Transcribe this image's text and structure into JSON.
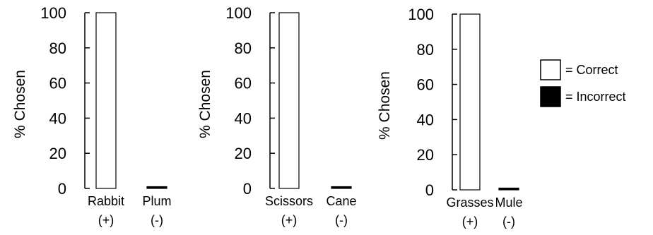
{
  "chart_data": [
    {
      "type": "bar",
      "categories": [
        "Rabbit",
        "Plum"
      ],
      "category_signs": [
        "(+)",
        "(-)"
      ],
      "values": [
        100,
        1
      ],
      "bar_fill": [
        "#ffffff",
        "#000000"
      ],
      "ylabel": "% Chosen",
      "ylim": [
        0,
        100
      ],
      "yticks": [
        0,
        20,
        40,
        60,
        80,
        100
      ],
      "grid": false
    },
    {
      "type": "bar",
      "categories": [
        "Scissors",
        "Cane"
      ],
      "category_signs": [
        "(+)",
        "(-)"
      ],
      "values": [
        100,
        1
      ],
      "bar_fill": [
        "#ffffff",
        "#000000"
      ],
      "ylabel": "% Chosen",
      "ylim": [
        0,
        100
      ],
      "yticks": [
        0,
        20,
        40,
        60,
        80,
        100
      ],
      "grid": false
    },
    {
      "type": "bar",
      "categories": [
        "Grasses",
        "Mule"
      ],
      "category_signs": [
        "(+)",
        "(-)"
      ],
      "values": [
        100,
        1
      ],
      "bar_fill": [
        "#ffffff",
        "#000000"
      ],
      "ylabel": "% Chosen",
      "ylim": [
        0,
        100
      ],
      "yticks": [
        0,
        20,
        40,
        60,
        80,
        100
      ],
      "grid": false
    }
  ],
  "legend": {
    "placement": "right",
    "items": [
      {
        "label": "= Correct",
        "color": "#ffffff"
      },
      {
        "label": "= Incorrect",
        "color": "#000000"
      }
    ]
  }
}
